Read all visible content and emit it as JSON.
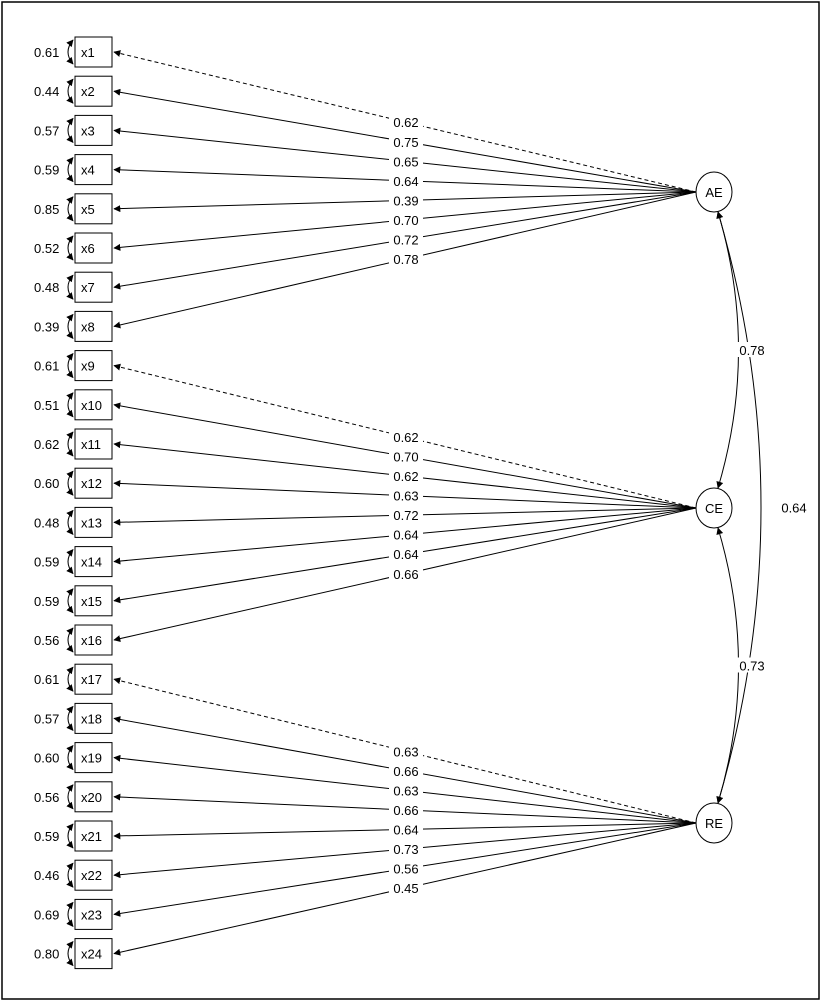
{
  "diagram": {
    "factors": [
      {
        "name": "AE",
        "loadings": [
          "0.62",
          "0.75",
          "0.65",
          "0.64",
          "0.39",
          "0.70",
          "0.72",
          "0.78"
        ]
      },
      {
        "name": "CE",
        "loadings": [
          "0.62",
          "0.70",
          "0.62",
          "0.63",
          "0.72",
          "0.64",
          "0.64",
          "0.66"
        ]
      },
      {
        "name": "RE",
        "loadings": [
          "0.63",
          "0.66",
          "0.63",
          "0.66",
          "0.64",
          "0.73",
          "0.56",
          "0.45"
        ]
      }
    ],
    "indicators": [
      "x1",
      "x2",
      "x3",
      "x4",
      "x5",
      "x6",
      "x7",
      "x8",
      "x9",
      "x10",
      "x11",
      "x12",
      "x13",
      "x14",
      "x15",
      "x16",
      "x17",
      "x18",
      "x19",
      "x20",
      "x21",
      "x22",
      "x23",
      "x24"
    ],
    "error_variances": [
      "0.61",
      "0.44",
      "0.57",
      "0.59",
      "0.85",
      "0.52",
      "0.48",
      "0.39",
      "0.61",
      "0.51",
      "0.62",
      "0.60",
      "0.48",
      "0.59",
      "0.59",
      "0.56",
      "0.61",
      "0.57",
      "0.60",
      "0.56",
      "0.59",
      "0.46",
      "0.69",
      "0.80"
    ],
    "correlations": [
      {
        "from": "AE",
        "to": "CE",
        "value": "0.78"
      },
      {
        "from": "CE",
        "to": "RE",
        "value": "0.73"
      },
      {
        "from": "AE",
        "to": "RE",
        "value": "0.64"
      }
    ]
  }
}
